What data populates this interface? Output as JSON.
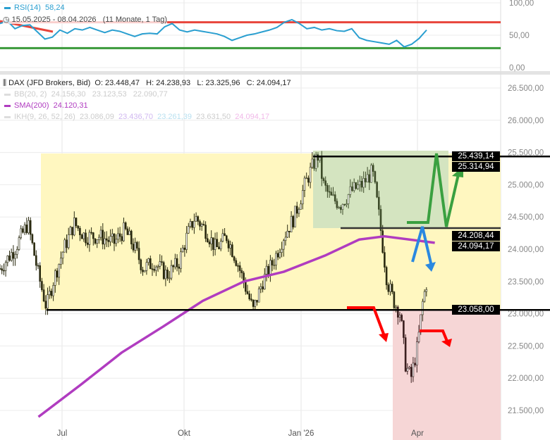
{
  "rsi": {
    "label": "RSI(14)",
    "value": "58,24",
    "color": "#2a9fd0",
    "levels": {
      "upper": 70,
      "lower": 30
    },
    "upper_color": "#e8453c",
    "lower_color": "#3a9a3a",
    "ticks": [
      "100,00",
      "50,00",
      "0,00"
    ],
    "values": [
      68,
      72,
      60,
      65,
      66,
      55,
      44,
      47,
      58,
      53,
      60,
      58,
      62,
      58,
      54,
      58,
      56,
      52,
      48,
      52,
      53,
      52,
      63,
      68,
      58,
      55,
      58,
      56,
      54,
      52,
      48,
      42,
      46,
      50,
      52,
      55,
      58,
      62,
      70,
      74,
      68,
      60,
      62,
      58,
      60,
      57,
      56,
      60,
      46,
      42,
      40,
      38,
      36,
      42,
      32,
      36,
      45,
      58
    ]
  },
  "timespan": "15.05.2025 - 08.04.2026   (11 Monate, 1 Tag)",
  "main": {
    "instrument": "DAX (JFD Brokers, Bid)",
    "ohlc": "O: 23.448,47   H: 24.238,93   L: 23.325,96   C: 24.094,17",
    "bb": {
      "label": "BB(20, 2)",
      "values": "24.156,30   23.123,53   22.090,77"
    },
    "sma": {
      "label": "SMA(200)",
      "value": "24.120,31",
      "color": "#b03cc0"
    },
    "ikh": {
      "label": "IKH(9, 26, 52, 26)",
      "v1": "23.086,09",
      "v2": "23.436,70",
      "v3": "23.261,39",
      "v4": "23.631,50",
      "v5": "24.094,17"
    }
  },
  "chart_data": {
    "type": "candlestick",
    "x_labels": [
      "Jul",
      "Okt",
      "Jan '26",
      "Apr"
    ],
    "y_ticks": [
      "26.500,00",
      "26.000,00",
      "25.500,00",
      "25.000,00",
      "24.500,00",
      "24.000,00",
      "23.500,00",
      "23.000,00",
      "22.500,00",
      "22.000,00",
      "21.500,00"
    ],
    "ylim": [
      21300,
      26700
    ],
    "closes": [
      [
        "2025-05-15",
        23700
      ],
      [
        "2025-05-26",
        24000
      ],
      [
        "2025-06-05",
        24400
      ],
      [
        "2025-06-13",
        23600
      ],
      [
        "2025-06-19",
        23100
      ],
      [
        "2025-06-24",
        23500
      ],
      [
        "2025-07-02",
        24000
      ],
      [
        "2025-07-10",
        24400
      ],
      [
        "2025-07-18",
        24200
      ],
      [
        "2025-07-29",
        24200
      ],
      [
        "2025-08-09",
        24100
      ],
      [
        "2025-08-17",
        24300
      ],
      [
        "2025-08-25",
        24000
      ],
      [
        "2025-08-31",
        23700
      ],
      [
        "2025-09-08",
        23800
      ],
      [
        "2025-09-18",
        23600
      ],
      [
        "2025-09-27",
        23800
      ],
      [
        "2025-10-03",
        24200
      ],
      [
        "2025-10-09",
        24500
      ],
      [
        "2025-10-17",
        24300
      ],
      [
        "2025-10-25",
        24000
      ],
      [
        "2025-11-02",
        24200
      ],
      [
        "2025-11-10",
        23800
      ],
      [
        "2025-11-18",
        23300
      ],
      [
        "2025-11-22",
        23050
      ],
      [
        "2025-11-29",
        23500
      ],
      [
        "2025-12-07",
        23800
      ],
      [
        "2025-12-15",
        24200
      ],
      [
        "2025-12-23",
        24500
      ],
      [
        "2025-12-31",
        25000
      ],
      [
        "2026-01-06",
        25300
      ],
      [
        "2026-01-10",
        25450
      ],
      [
        "2026-01-14",
        25000
      ],
      [
        "2026-01-19",
        24800
      ],
      [
        "2026-01-27",
        24700
      ],
      [
        "2026-02-04",
        24900
      ],
      [
        "2026-02-12",
        25000
      ],
      [
        "2026-02-20",
        25200
      ],
      [
        "2026-02-25",
        24500
      ],
      [
        "2026-03-03",
        23500
      ],
      [
        "2026-03-08",
        23200
      ],
      [
        "2026-03-13",
        23000
      ],
      [
        "2026-03-17",
        22200
      ],
      [
        "2026-03-21",
        22000
      ],
      [
        "2026-03-26",
        22500
      ],
      [
        "2026-03-30",
        23200
      ],
      [
        "2026-04-08",
        24094
      ]
    ],
    "sma200": [
      [
        "2025-06-13",
        21400
      ],
      [
        "2025-07-15",
        21900
      ],
      [
        "2025-08-15",
        22400
      ],
      [
        "2025-09-15",
        22800
      ],
      [
        "2025-10-15",
        23200
      ],
      [
        "2025-11-15",
        23500
      ],
      [
        "2025-12-15",
        23650
      ],
      [
        "2026-01-15",
        23900
      ],
      [
        "2026-02-10",
        24150
      ],
      [
        "2026-03-01",
        24200
      ],
      [
        "2026-04-08",
        24100
      ]
    ],
    "levels": [
      {
        "value": 25439.14,
        "label": "25.439,14"
      },
      {
        "value": 24208.44,
        "label": "24.208,44"
      },
      {
        "value": 23058,
        "label": "23.058,00"
      }
    ],
    "price_labels": [
      {
        "value": 25314.94,
        "label": "25.314,94"
      },
      {
        "value": 24094.17,
        "label": "24.094,17"
      }
    ],
    "zones": {
      "range_color": "#fff7c0",
      "consolidation_color": "#d4e4c0",
      "breakdown_color": "#f6d6d6"
    }
  }
}
